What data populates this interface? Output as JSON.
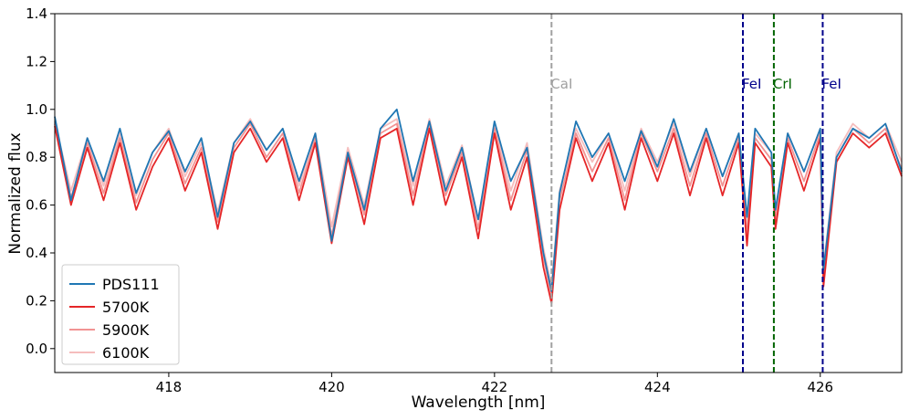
{
  "chart_data": {
    "type": "line",
    "xlabel": "Wavelength [nm]",
    "ylabel": "Normalized flux",
    "xlim": [
      416.6,
      427.0
    ],
    "ylim": [
      -0.1,
      1.4
    ],
    "xticks": [
      418,
      420,
      422,
      424,
      426
    ],
    "xtick_labels": [
      "418",
      "420",
      "422",
      "424",
      "426"
    ],
    "yticks": [
      0.0,
      0.2,
      0.4,
      0.6,
      0.8,
      1.0,
      1.2,
      1.4
    ],
    "ytick_labels": [
      "0.0",
      "0.2",
      "0.4",
      "0.6",
      "0.8",
      "1.0",
      "1.2",
      "1.4"
    ],
    "grid": false,
    "legend_position": "lower-left",
    "x": [
      416.6,
      416.8,
      417.0,
      417.2,
      417.4,
      417.6,
      417.8,
      418.0,
      418.2,
      418.4,
      418.6,
      418.8,
      419.0,
      419.2,
      419.4,
      419.6,
      419.8,
      420.0,
      420.2,
      420.4,
      420.6,
      420.8,
      421.0,
      421.2,
      421.4,
      421.6,
      421.8,
      422.0,
      422.2,
      422.4,
      422.6,
      422.7,
      422.8,
      423.0,
      423.2,
      423.4,
      423.6,
      423.8,
      424.0,
      424.2,
      424.4,
      424.6,
      424.8,
      425.0,
      425.1,
      425.2,
      425.4,
      425.45,
      425.6,
      425.8,
      426.0,
      426.04,
      426.2,
      426.4,
      426.6,
      426.8,
      427.0
    ],
    "series": [
      {
        "name": "PDS111",
        "color": "#1f77b4",
        "opacity": 1.0,
        "values": [
          0.97,
          0.62,
          0.88,
          0.7,
          0.92,
          0.65,
          0.82,
          0.91,
          0.74,
          0.88,
          0.55,
          0.86,
          0.95,
          0.83,
          0.92,
          0.7,
          0.9,
          0.45,
          0.82,
          0.58,
          0.92,
          1.0,
          0.7,
          0.95,
          0.66,
          0.84,
          0.54,
          0.95,
          0.7,
          0.84,
          0.4,
          0.24,
          0.65,
          0.95,
          0.8,
          0.9,
          0.7,
          0.91,
          0.76,
          0.96,
          0.74,
          0.92,
          0.72,
          0.9,
          0.55,
          0.92,
          0.82,
          0.58,
          0.9,
          0.74,
          0.92,
          0.33,
          0.8,
          0.92,
          0.88,
          0.94,
          0.74
        ]
      },
      {
        "name": "5700K",
        "color": "#e41a1c",
        "opacity": 0.95,
        "values": [
          0.93,
          0.6,
          0.84,
          0.62,
          0.86,
          0.58,
          0.76,
          0.88,
          0.66,
          0.82,
          0.5,
          0.82,
          0.92,
          0.78,
          0.88,
          0.62,
          0.86,
          0.44,
          0.8,
          0.52,
          0.88,
          0.92,
          0.6,
          0.92,
          0.6,
          0.8,
          0.46,
          0.9,
          0.58,
          0.8,
          0.34,
          0.19,
          0.58,
          0.88,
          0.7,
          0.86,
          0.58,
          0.88,
          0.7,
          0.9,
          0.64,
          0.88,
          0.64,
          0.86,
          0.43,
          0.86,
          0.76,
          0.5,
          0.86,
          0.66,
          0.88,
          0.26,
          0.78,
          0.9,
          0.84,
          0.9,
          0.72
        ]
      },
      {
        "name": "5900K",
        "color": "#f08080",
        "opacity": 0.85,
        "values": [
          0.94,
          0.63,
          0.86,
          0.65,
          0.88,
          0.61,
          0.79,
          0.9,
          0.69,
          0.84,
          0.53,
          0.84,
          0.94,
          0.8,
          0.9,
          0.65,
          0.88,
          0.47,
          0.82,
          0.56,
          0.9,
          0.94,
          0.64,
          0.94,
          0.64,
          0.82,
          0.5,
          0.92,
          0.62,
          0.83,
          0.38,
          0.22,
          0.62,
          0.9,
          0.74,
          0.88,
          0.62,
          0.9,
          0.74,
          0.92,
          0.68,
          0.9,
          0.68,
          0.88,
          0.47,
          0.88,
          0.79,
          0.53,
          0.88,
          0.7,
          0.9,
          0.3,
          0.8,
          0.92,
          0.86,
          0.92,
          0.75
        ]
      },
      {
        "name": "6100K",
        "color": "#f4b6b6",
        "opacity": 0.9,
        "values": [
          0.95,
          0.66,
          0.88,
          0.68,
          0.9,
          0.64,
          0.82,
          0.92,
          0.72,
          0.86,
          0.57,
          0.86,
          0.96,
          0.83,
          0.92,
          0.68,
          0.9,
          0.51,
          0.84,
          0.6,
          0.92,
          0.96,
          0.68,
          0.96,
          0.68,
          0.85,
          0.54,
          0.94,
          0.66,
          0.86,
          0.42,
          0.26,
          0.66,
          0.92,
          0.78,
          0.9,
          0.66,
          0.92,
          0.78,
          0.94,
          0.72,
          0.92,
          0.72,
          0.9,
          0.51,
          0.9,
          0.82,
          0.57,
          0.9,
          0.74,
          0.92,
          0.34,
          0.82,
          0.94,
          0.88,
          0.94,
          0.78
        ]
      }
    ],
    "vlines": [
      {
        "x": 422.7,
        "label": "CaI",
        "color": "#a0a0a0"
      },
      {
        "x": 425.05,
        "label": "FeI",
        "color": "#00008b"
      },
      {
        "x": 425.43,
        "label": "CrI",
        "color": "#006400"
      },
      {
        "x": 426.03,
        "label": "FeI",
        "color": "#00008b"
      }
    ],
    "vline_label_y": 1.11
  }
}
